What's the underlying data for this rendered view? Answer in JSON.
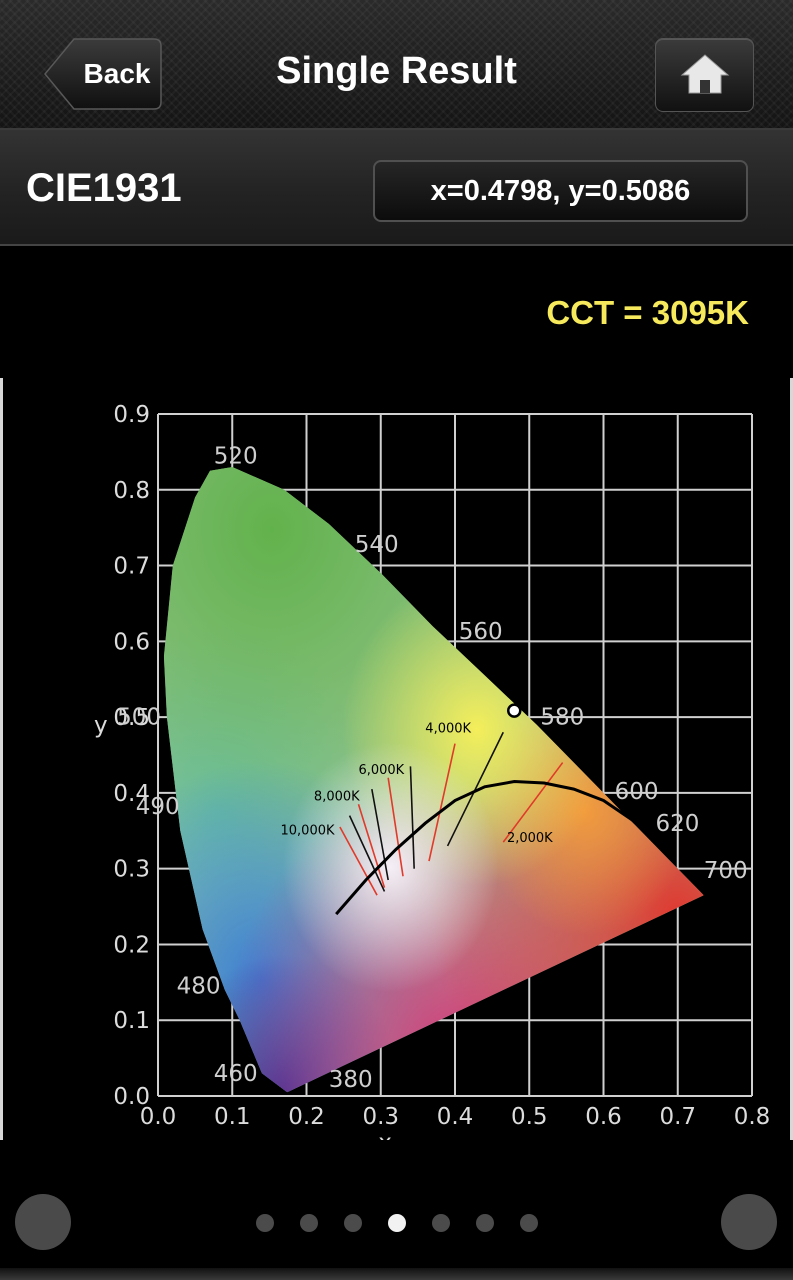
{
  "nav": {
    "back_label": "Back",
    "title": "Single Result",
    "home_icon": "home-icon"
  },
  "section": {
    "title": "CIE1931",
    "coordinates": "x=0.4798, y=0.5086"
  },
  "cct_text": "CCT = 3095K",
  "chart_data": {
    "type": "scatter",
    "xlabel": "x",
    "ylabel": "y",
    "xlim": [
      0.0,
      0.8
    ],
    "ylim": [
      0.0,
      0.9
    ],
    "grid": true,
    "x_ticks": [
      "0.0",
      "0.1",
      "0.2",
      "0.3",
      "0.4",
      "0.5",
      "0.6",
      "0.7",
      "0.8"
    ],
    "y_ticks": [
      "0.0",
      "0.1",
      "0.2",
      "0.3",
      "0.4",
      "0.5",
      "0.6",
      "0.7",
      "0.8",
      "0.9"
    ],
    "spectral_locus": [
      [
        0.174,
        0.005
      ],
      [
        0.14,
        0.03
      ],
      [
        0.11,
        0.1
      ],
      [
        0.09,
        0.14
      ],
      [
        0.06,
        0.22
      ],
      [
        0.03,
        0.35
      ],
      [
        0.012,
        0.5
      ],
      [
        0.008,
        0.58
      ],
      [
        0.02,
        0.7
      ],
      [
        0.05,
        0.79
      ],
      [
        0.07,
        0.825
      ],
      [
        0.1,
        0.83
      ],
      [
        0.17,
        0.8
      ],
      [
        0.23,
        0.755
      ],
      [
        0.3,
        0.69
      ],
      [
        0.37,
        0.62
      ],
      [
        0.44,
        0.555
      ],
      [
        0.51,
        0.49
      ],
      [
        0.58,
        0.42
      ],
      [
        0.64,
        0.36
      ],
      [
        0.69,
        0.31
      ],
      [
        0.735,
        0.265
      ]
    ],
    "wavelength_labels": [
      {
        "label": "520",
        "x": 0.075,
        "y": 0.835
      },
      {
        "label": "540",
        "x": 0.265,
        "y": 0.718
      },
      {
        "label": "560",
        "x": 0.405,
        "y": 0.603
      },
      {
        "label": "500",
        "x": -0.055,
        "y": 0.49
      },
      {
        "label": "580",
        "x": 0.515,
        "y": 0.49
      },
      {
        "label": "600",
        "x": 0.615,
        "y": 0.392
      },
      {
        "label": "490",
        "x": -0.03,
        "y": 0.372
      },
      {
        "label": "620",
        "x": 0.67,
        "y": 0.35
      },
      {
        "label": "700",
        "x": 0.735,
        "y": 0.288
      },
      {
        "label": "480",
        "x": 0.025,
        "y": 0.135
      },
      {
        "label": "460",
        "x": 0.075,
        "y": 0.02
      },
      {
        "label": "380",
        "x": 0.23,
        "y": 0.012
      }
    ],
    "planckian_locus": [
      [
        0.24,
        0.24
      ],
      [
        0.28,
        0.285
      ],
      [
        0.32,
        0.325
      ],
      [
        0.36,
        0.36
      ],
      [
        0.4,
        0.39
      ],
      [
        0.44,
        0.408
      ],
      [
        0.48,
        0.415
      ],
      [
        0.52,
        0.413
      ],
      [
        0.56,
        0.405
      ],
      [
        0.6,
        0.39
      ],
      [
        0.63,
        0.37
      ],
      [
        0.66,
        0.35
      ]
    ],
    "isotherms": [
      {
        "x1": 0.245,
        "y1": 0.355,
        "x2": 0.295,
        "y2": 0.265,
        "color": "#e03a2a"
      },
      {
        "x1": 0.258,
        "y1": 0.37,
        "x2": 0.305,
        "y2": 0.27,
        "color": "#111111"
      },
      {
        "x1": 0.27,
        "y1": 0.385,
        "x2": 0.305,
        "y2": 0.275,
        "color": "#e03a2a"
      },
      {
        "x1": 0.288,
        "y1": 0.405,
        "x2": 0.31,
        "y2": 0.285,
        "color": "#111111"
      },
      {
        "x1": 0.31,
        "y1": 0.42,
        "x2": 0.33,
        "y2": 0.29,
        "color": "#e03a2a"
      },
      {
        "x1": 0.34,
        "y1": 0.435,
        "x2": 0.345,
        "y2": 0.3,
        "color": "#111111"
      },
      {
        "x1": 0.4,
        "y1": 0.465,
        "x2": 0.365,
        "y2": 0.31,
        "color": "#e03a2a"
      },
      {
        "x1": 0.465,
        "y1": 0.48,
        "x2": 0.39,
        "y2": 0.33,
        "color": "#111111"
      },
      {
        "x1": 0.545,
        "y1": 0.44,
        "x2": 0.465,
        "y2": 0.335,
        "color": "#e03a2a"
      }
    ],
    "cct_labels": [
      {
        "label": "10,000K",
        "x": 0.165,
        "y": 0.345
      },
      {
        "label": "8,000K",
        "x": 0.21,
        "y": 0.39
      },
      {
        "label": "6,000K",
        "x": 0.27,
        "y": 0.425
      },
      {
        "label": "4,000K",
        "x": 0.36,
        "y": 0.48
      },
      {
        "label": "2,000K",
        "x": 0.47,
        "y": 0.335
      }
    ],
    "point": {
      "x": 0.4798,
      "y": 0.5086
    }
  },
  "pager": {
    "page_count": 7,
    "active_index": 3
  }
}
